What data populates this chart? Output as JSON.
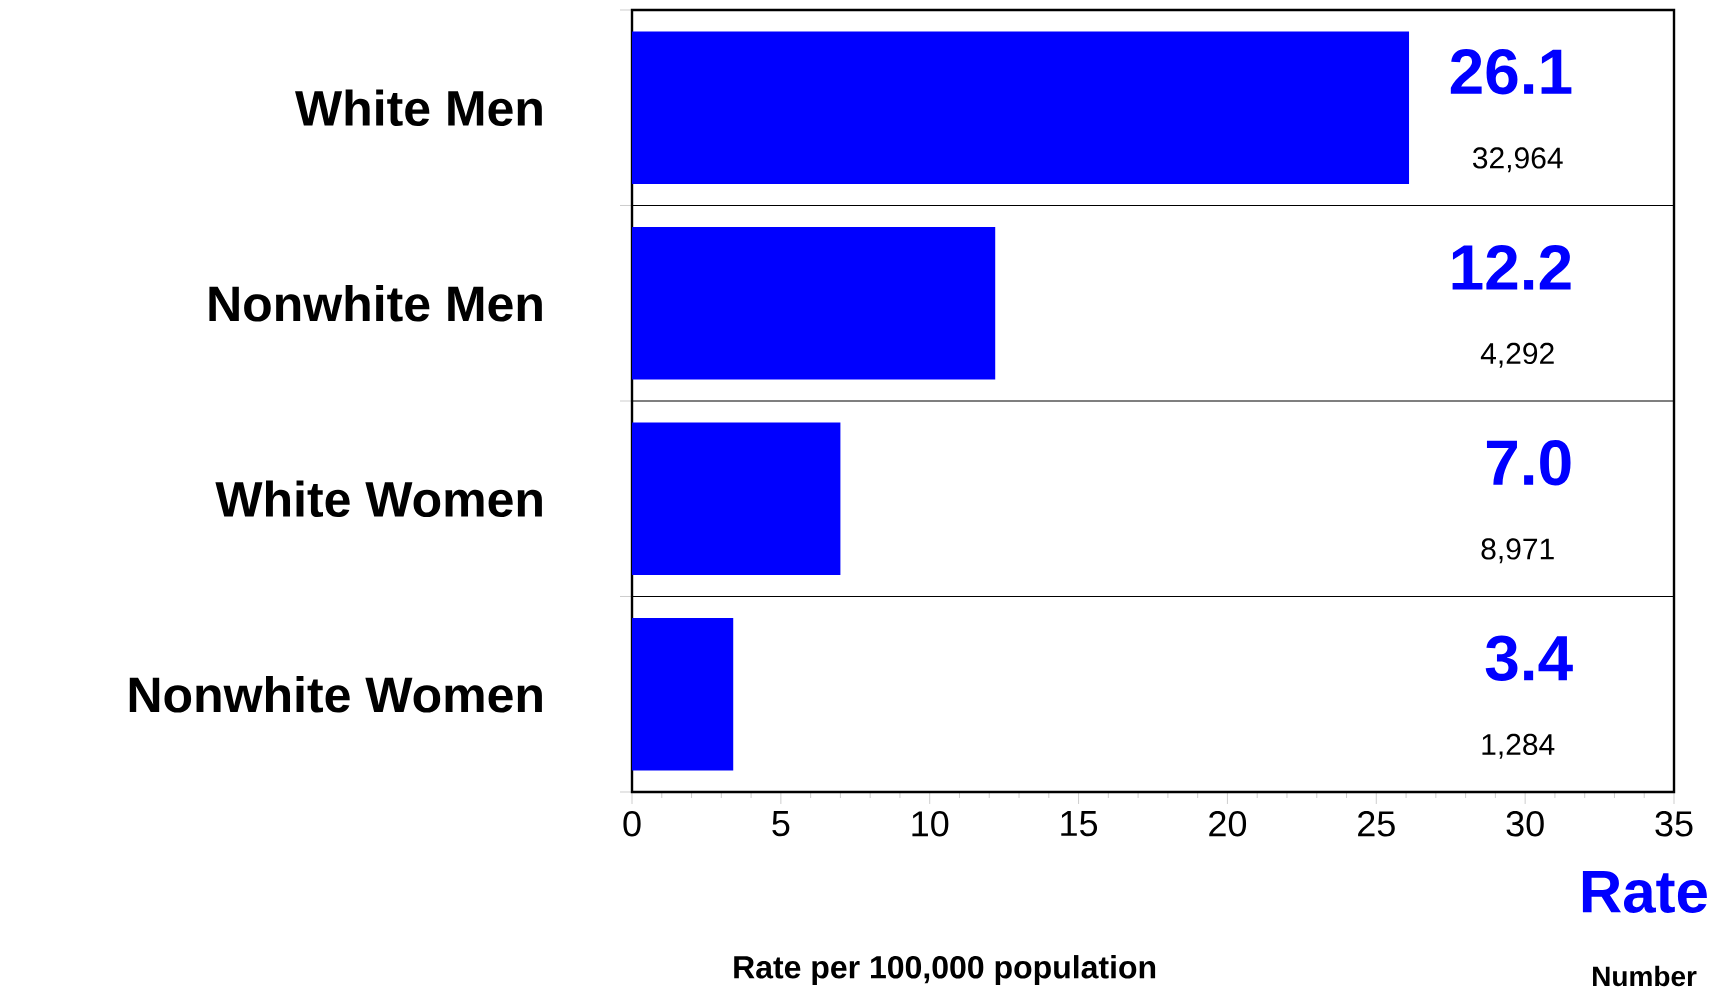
{
  "chart_data": {
    "type": "bar",
    "orientation": "horizontal",
    "categories": [
      "White Men",
      "Nonwhite Men",
      "White Women",
      "Nonwhite Women"
    ],
    "values": [
      26.1,
      12.2,
      7.0,
      3.4
    ],
    "value_labels": [
      "26.1",
      "12.2",
      "7.0",
      "3.4"
    ],
    "color": "#0000ff",
    "xlim": [
      0,
      35
    ],
    "xticks": [
      0,
      5,
      10,
      15,
      20,
      25,
      30,
      35
    ],
    "xlabel": "Rate per 100,000 population",
    "grid": "y",
    "annotations": [
      "32,964",
      "4,292",
      "8,971",
      "1,284",
      "Rate",
      "Number"
    ]
  }
}
